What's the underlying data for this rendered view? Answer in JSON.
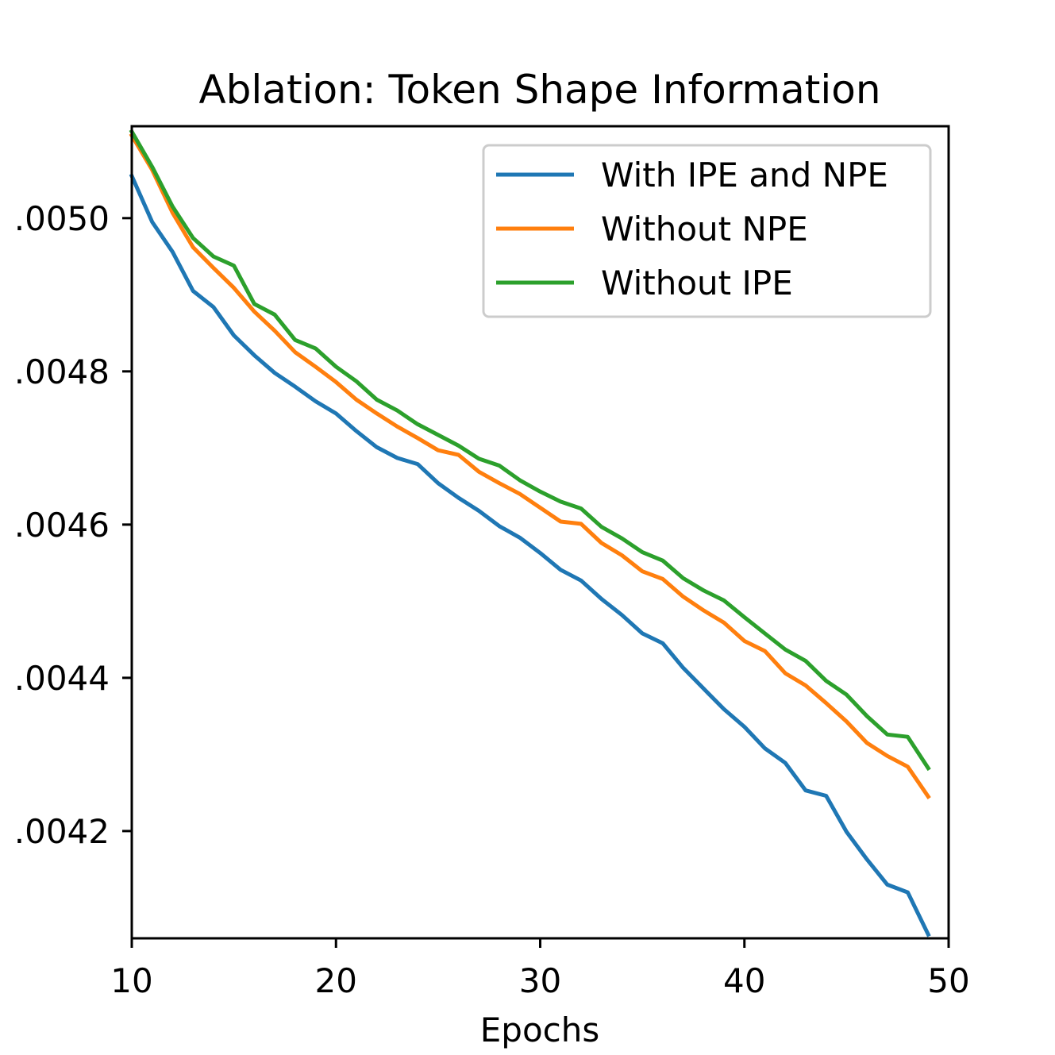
{
  "chart_data": {
    "type": "line",
    "title": "Ablation: Token Shape Information",
    "xlabel": "Epochs",
    "ylabel": "",
    "xlim": [
      10,
      50
    ],
    "ylim": [
      0.00406,
      0.00512
    ],
    "xticks": [
      10,
      20,
      30,
      40,
      50
    ],
    "xtick_labels": [
      "10",
      "20",
      "30",
      "40",
      "50"
    ],
    "yticks": [
      0.0042,
      0.0044,
      0.0046,
      0.0048,
      0.005
    ],
    "ytick_labels": [
      ".0042",
      ".0044",
      ".0046",
      ".0048",
      ".0050"
    ],
    "grid": false,
    "legend_position": "top-right",
    "x": [
      10,
      11,
      12,
      13,
      14,
      15,
      16,
      17,
      18,
      19,
      20,
      21,
      22,
      23,
      24,
      25,
      26,
      27,
      28,
      29,
      30,
      31,
      32,
      33,
      34,
      35,
      36,
      37,
      38,
      39,
      40,
      41,
      42,
      43,
      44,
      45,
      46,
      47,
      48,
      49
    ],
    "series": [
      {
        "name": "With IPE and NPE",
        "color": "#1f77b4",
        "values": [
          0.005055,
          0.004995,
          0.004956,
          0.004905,
          0.004884,
          0.004847,
          0.004821,
          0.004798,
          0.00478,
          0.004761,
          0.004745,
          0.004722,
          0.004701,
          0.004687,
          0.004679,
          0.004654,
          0.004635,
          0.004618,
          0.004598,
          0.004583,
          0.004563,
          0.004541,
          0.004527,
          0.004503,
          0.004482,
          0.004458,
          0.004445,
          0.004413,
          0.004386,
          0.004359,
          0.004336,
          0.004308,
          0.004289,
          0.004253,
          0.004246,
          0.004199,
          0.004163,
          0.00413,
          0.00412,
          0.004065
        ]
      },
      {
        "name": "Without NPE",
        "color": "#ff7f0e",
        "values": [
          0.005108,
          0.005063,
          0.005007,
          0.004962,
          0.004935,
          0.004909,
          0.004878,
          0.004853,
          0.004825,
          0.004806,
          0.004786,
          0.004763,
          0.004745,
          0.004728,
          0.004713,
          0.004697,
          0.004691,
          0.004669,
          0.004654,
          0.00464,
          0.004622,
          0.004604,
          0.004601,
          0.004576,
          0.00456,
          0.004539,
          0.004529,
          0.004506,
          0.004488,
          0.004472,
          0.004448,
          0.004435,
          0.004406,
          0.00439,
          0.004367,
          0.004343,
          0.004315,
          0.004298,
          0.004284,
          0.004245
        ]
      },
      {
        "name": "Without IPE",
        "color": "#2ca02c",
        "values": [
          0.005113,
          0.005067,
          0.005015,
          0.004974,
          0.00495,
          0.004938,
          0.004888,
          0.004874,
          0.004841,
          0.00483,
          0.004806,
          0.004787,
          0.004763,
          0.004749,
          0.004731,
          0.004717,
          0.004703,
          0.004686,
          0.004677,
          0.004658,
          0.004643,
          0.00463,
          0.004621,
          0.004597,
          0.004582,
          0.004564,
          0.004553,
          0.00453,
          0.004514,
          0.004501,
          0.004479,
          0.004458,
          0.004437,
          0.004422,
          0.004396,
          0.004378,
          0.00435,
          0.004326,
          0.004323,
          0.004282
        ]
      }
    ]
  }
}
